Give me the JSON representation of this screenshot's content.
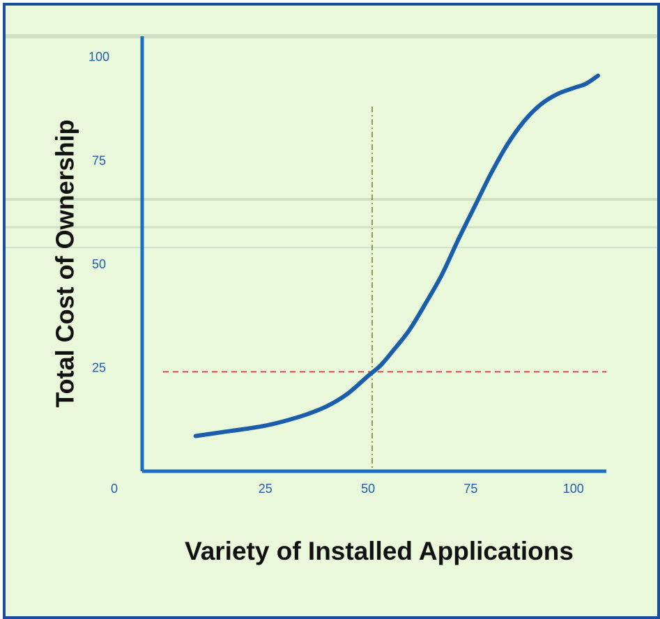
{
  "chart_data": {
    "type": "line",
    "title": "",
    "xlabel": "Variety of Installed Applications",
    "ylabel": "Total Cost of Ownership",
    "xlim": [
      -5,
      107
    ],
    "ylim": [
      0,
      105
    ],
    "x_ticks": [
      25,
      50,
      75,
      100
    ],
    "y_ticks": [
      25,
      50,
      75,
      100
    ],
    "origin_label": "0",
    "series": [
      {
        "x": [
          8,
          15,
          20,
          25,
          30,
          35,
          40,
          45,
          50,
          53,
          56,
          60,
          64,
          68,
          72,
          76,
          80,
          84,
          88,
          92,
          96,
          100,
          103,
          106
        ],
        "y": [
          8.5,
          9.5,
          10.2,
          11,
          12.2,
          13.7,
          15.7,
          18.7,
          23,
          25.5,
          29,
          34,
          40.5,
          47.5,
          56,
          64,
          72,
          79,
          84.5,
          88.5,
          91,
          92.5,
          93.5,
          95.5
        ]
      }
    ],
    "reference_lines": [
      {
        "orientation": "horizontal",
        "value": 24,
        "style": "dashed",
        "color": "#e8434a"
      },
      {
        "orientation": "vertical",
        "value": 51,
        "style": "dash-dot",
        "color": "#6f7f2d"
      }
    ],
    "colors": {
      "curve": "#1a5dab",
      "axes": "#1a6fc0",
      "tick_labels": "#1f5fae",
      "background": "#e9f7da",
      "border": "#1a4e9c"
    }
  }
}
